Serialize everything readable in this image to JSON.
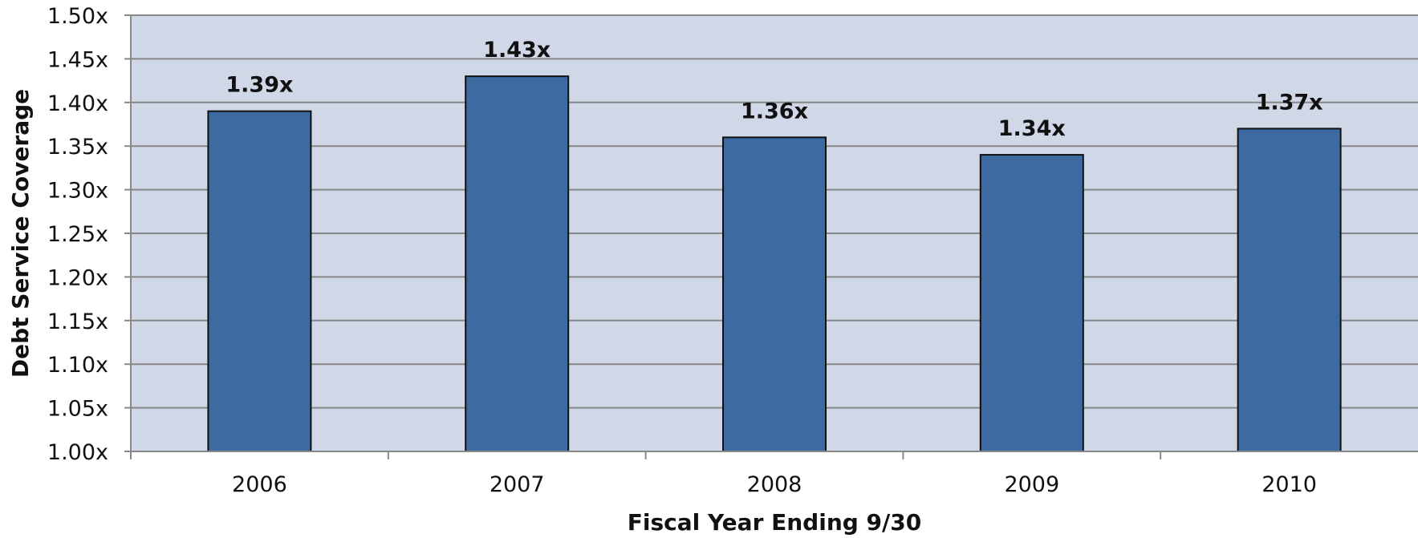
{
  "chart_data": {
    "type": "bar",
    "categories": [
      "2006",
      "2007",
      "2008",
      "2009",
      "2010"
    ],
    "values": [
      1.39,
      1.43,
      1.36,
      1.34,
      1.37
    ],
    "data_labels": [
      "1.39x",
      "1.43x",
      "1.36x",
      "1.34x",
      "1.37x"
    ],
    "title": "",
    "xlabel": "Fiscal Year Ending 9/30",
    "ylabel": "Debt Service Coverage",
    "ylim": [
      1.0,
      1.5
    ],
    "yticks": [
      1.0,
      1.05,
      1.1,
      1.15,
      1.2,
      1.25,
      1.3,
      1.35,
      1.4,
      1.45,
      1.5
    ],
    "ytick_labels": [
      "1.00x",
      "1.05x",
      "1.10x",
      "1.15x",
      "1.20x",
      "1.25x",
      "1.30x",
      "1.35x",
      "1.40x",
      "1.45x",
      "1.50x"
    ],
    "grid": true,
    "legend": "none",
    "colors": {
      "bar": "#3d6aa0",
      "bar_outline": "#111111",
      "plot_background": "#d0d7e7",
      "gridline": "#888888",
      "axis": "#888888"
    }
  }
}
